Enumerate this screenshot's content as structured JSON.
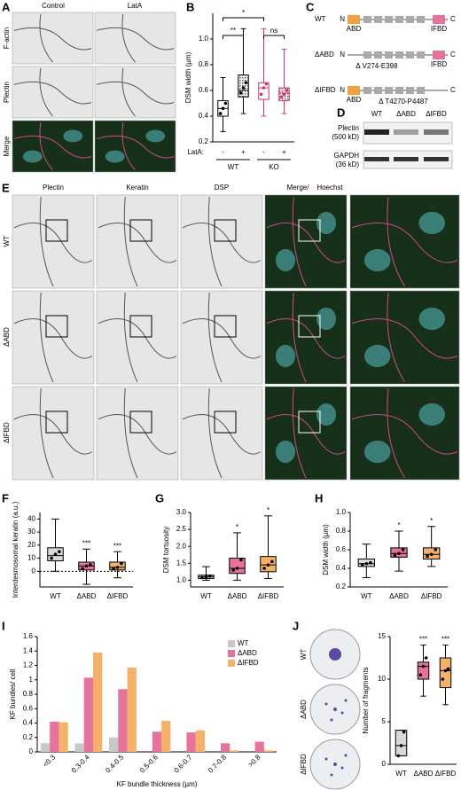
{
  "figure": {
    "letters": [
      "A",
      "B",
      "C",
      "D",
      "E",
      "F",
      "G",
      "H",
      "I",
      "J"
    ],
    "A": {
      "columns": [
        "Control",
        "LatA"
      ],
      "rows": [
        "F-actin",
        "Plectin",
        "Merge"
      ]
    },
    "C": {
      "constructs": [
        "WT",
        "ΔABD",
        "ΔIFBD"
      ],
      "abd": "ABD",
      "ifbd": "IFBD",
      "n": "N",
      "c": "C",
      "deletions": [
        "Δ V274-E398",
        "Δ T4270-P4487"
      ]
    },
    "D": {
      "lanes": [
        "WT",
        "ΔABD",
        "ΔIFBD"
      ],
      "bands": [
        "Plectin",
        "GAPDH"
      ],
      "sizes": [
        "(500 kD)",
        "(36 kD)"
      ]
    },
    "E": {
      "columns": [
        "Plectin",
        "Keratin",
        "DSP",
        "Merge/",
        "Hoechst"
      ],
      "rows": [
        "WT",
        "ΔABD",
        "ΔIFBD"
      ]
    },
    "J": {
      "rows": [
        "WT",
        "ΔABD",
        "ΔIFBD"
      ]
    }
  },
  "chart_data": [
    {
      "type": "box",
      "ylabel": "DSM width (µm)",
      "ylim": [
        0.2,
        1.2
      ],
      "yticks": [
        0.2,
        0.4,
        0.6,
        0.8,
        {
          "value": 1,
          "label": "1.0"
        }
      ],
      "categories": [
        "-",
        "+",
        "-",
        "+"
      ],
      "groups": [
        "WT",
        "KO"
      ],
      "row_label": "LatA:",
      "annotations": [
        "**",
        "*",
        "ns"
      ],
      "boxes": [
        {
          "color": "#000000",
          "fill": "#ffffff",
          "min": 0.28,
          "q1": 0.4,
          "median": 0.46,
          "q3": 0.52,
          "max": 0.7,
          "points": [
            0.42,
            0.46,
            0.5
          ]
        },
        {
          "color": "#000000",
          "fill": "#d0d0d0",
          "min": 0.42,
          "q1": 0.55,
          "median": 0.6,
          "q3": 0.72,
          "max": 1.08,
          "points": [
            0.58,
            0.62,
            0.66
          ]
        },
        {
          "color": "#d6336c",
          "fill": "#ffffff",
          "min": 0.4,
          "q1": 0.53,
          "median": 0.62,
          "q3": 0.66,
          "max": 1.08,
          "points": [
            0.57,
            0.62,
            0.65
          ]
        },
        {
          "color": "#d6336c",
          "fill": "#f6c5d5",
          "min": 0.42,
          "q1": 0.52,
          "median": 0.58,
          "q3": 0.62,
          "max": 0.92,
          "points": [
            0.55,
            0.57,
            0.6
          ]
        }
      ]
    },
    {
      "type": "box",
      "ylabel": "Interdesmosomal keratin (a.u.)",
      "ylim": [
        -12,
        45
      ],
      "yticks": [
        0,
        10,
        20,
        30,
        40
      ],
      "zero_line": true,
      "categories": [
        "WT",
        "ΔABD",
        "ΔIFBD"
      ],
      "annotations": [
        null,
        "***",
        "***"
      ],
      "boxes": [
        {
          "color": "#000000",
          "fill": "#d9d9d9",
          "min": 0,
          "q1": 8,
          "median": 12,
          "q3": 18,
          "max": 40,
          "points": [
            10,
            13,
            15
          ]
        },
        {
          "color": "#000000",
          "fill": "#e8739a",
          "min": -10,
          "q1": 1,
          "median": 4,
          "q3": 7,
          "max": 17,
          "points": [
            2,
            4,
            5
          ]
        },
        {
          "color": "#000000",
          "fill": "#f5b169",
          "min": -5,
          "q1": 1,
          "median": 3,
          "q3": 7,
          "max": 15,
          "points": [
            2,
            3,
            6
          ]
        }
      ]
    },
    {
      "type": "box",
      "ylabel": "DSM tortuosity",
      "ylim": [
        0.8,
        3
      ],
      "yticks": [
        {
          "value": 1,
          "label": "1.0"
        },
        1.5,
        {
          "value": 2,
          "label": "2.0"
        },
        2.5,
        {
          "value": 3,
          "label": "3.0"
        }
      ],
      "categories": [
        "WT",
        "ΔABD",
        "ΔIFBD"
      ],
      "annotations": [
        null,
        "*",
        "*"
      ],
      "boxes": [
        {
          "color": "#000000",
          "fill": "#d9d9d9",
          "min": 1,
          "q1": 1.05,
          "median": 1.1,
          "q3": 1.15,
          "max": 1.4,
          "points": [
            1.08,
            1.1,
            1.12
          ]
        },
        {
          "color": "#000000",
          "fill": "#e8739a",
          "min": 1,
          "q1": 1.2,
          "median": 1.35,
          "q3": 1.65,
          "max": 2.4,
          "points": [
            1.3,
            1.35,
            1.6
          ]
        },
        {
          "color": "#000000",
          "fill": "#f5b169",
          "min": 1.05,
          "q1": 1.25,
          "median": 1.45,
          "q3": 1.7,
          "max": 2.9,
          "points": [
            1.35,
            1.45,
            1.55
          ]
        }
      ]
    },
    {
      "type": "box",
      "ylabel": "DSM width (µm)",
      "ylim": [
        0.2,
        1
      ],
      "yticks": [
        0.2,
        0.4,
        0.6,
        0.8,
        {
          "value": 1,
          "label": "1.0"
        }
      ],
      "categories": [
        "WT",
        "ΔABD",
        "ΔIFBD"
      ],
      "annotations": [
        null,
        "*",
        "*"
      ],
      "boxes": [
        {
          "color": "#000000",
          "fill": "#d9d9d9",
          "min": 0.3,
          "q1": 0.42,
          "median": 0.45,
          "q3": 0.5,
          "max": 0.66,
          "points": [
            0.44,
            0.45,
            0.46
          ]
        },
        {
          "color": "#000000",
          "fill": "#e8739a",
          "min": 0.37,
          "q1": 0.52,
          "median": 0.56,
          "q3": 0.62,
          "max": 0.8,
          "points": [
            0.54,
            0.56,
            0.6
          ]
        },
        {
          "color": "#000000",
          "fill": "#f5b169",
          "min": 0.42,
          "q1": 0.5,
          "median": 0.55,
          "q3": 0.62,
          "max": 0.85,
          "points": [
            0.53,
            0.55,
            0.6
          ]
        }
      ]
    },
    {
      "type": "bar",
      "ylabel": "KF bundles/ cell",
      "xlabel": "KF bundle thickness (µm)",
      "ylim": [
        0,
        1.6
      ],
      "yticks": [
        0,
        0.2,
        0.4,
        0.6,
        0.8,
        1,
        1.2,
        1.4,
        1.6
      ],
      "categories": [
        "<0.3",
        "0.3-0.4",
        "0.4-0.5",
        "0.5-0.6",
        "0.6-0.7",
        "0.7-0.8",
        ">0.8"
      ],
      "series": [
        {
          "name": "WT",
          "color": "#c8c8c8",
          "values": [
            0.12,
            0.12,
            0.2,
            0,
            0,
            0,
            0
          ]
        },
        {
          "name": "ΔABD",
          "color": "#e8739a",
          "values": [
            0.42,
            1.03,
            0.87,
            0.28,
            0.27,
            0.12,
            0.14
          ]
        },
        {
          "name": "ΔIFBD",
          "color": "#f5b169",
          "values": [
            0.41,
            1.38,
            1.17,
            0.43,
            0.3,
            0.02,
            0.02
          ]
        }
      ]
    },
    {
      "type": "box",
      "ylabel": "Number of fragments",
      "ylim": [
        0,
        15
      ],
      "yticks": [
        0,
        5,
        10,
        15
      ],
      "categories": [
        "WT",
        "ΔABD",
        "ΔIFBD"
      ],
      "annotations": [
        null,
        "***",
        "***"
      ],
      "boxes": [
        {
          "color": "#000000",
          "fill": "#d9d9d9",
          "min": 1,
          "q1": 1,
          "median": 2.2,
          "q3": 4,
          "max": 4,
          "points": [
            1,
            2.2,
            3.8
          ]
        },
        {
          "color": "#000000",
          "fill": "#e8739a",
          "min": 8,
          "q1": 10,
          "median": 11.5,
          "q3": 12,
          "max": 14,
          "points": [
            10.5,
            11.5,
            12.5
          ]
        },
        {
          "color": "#000000",
          "fill": "#f5b169",
          "min": 7,
          "q1": 9,
          "median": 11,
          "q3": 12.5,
          "max": 14,
          "points": [
            10,
            11,
            11.2
          ]
        }
      ]
    }
  ]
}
